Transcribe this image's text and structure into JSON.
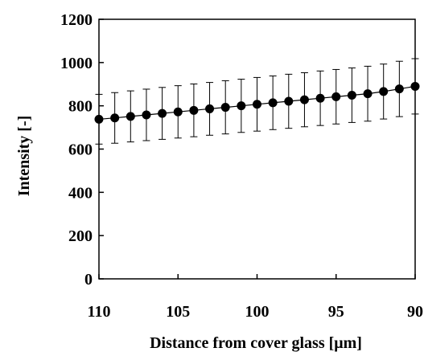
{
  "chart_data": {
    "type": "scatter",
    "xlabel": "Distance from cover glass [μm]",
    "ylabel": "Intensity [-]",
    "xlim": [
      110,
      90
    ],
    "ylim": [
      0,
      1200
    ],
    "x_ticks": [
      110,
      105,
      100,
      95,
      90
    ],
    "y_ticks": [
      0,
      200,
      400,
      600,
      800,
      1000,
      1200
    ],
    "x_reversed": true,
    "grid": false,
    "series": [
      {
        "x": [
          110,
          109,
          108,
          107,
          106,
          105,
          104,
          103,
          102,
          101,
          100,
          99,
          98,
          97,
          96,
          95,
          94,
          93,
          92,
          91,
          90
        ],
        "y": [
          738,
          744,
          751,
          758,
          765,
          772,
          779,
          786,
          793,
          800,
          807,
          814,
          821,
          828,
          835,
          842,
          849,
          856,
          866,
          878,
          890
        ],
        "error": [
          115,
          117,
          118,
          119,
          120,
          121,
          122,
          122,
          123,
          123,
          124,
          124,
          125,
          125,
          126,
          126,
          126,
          127,
          127,
          128,
          128
        ]
      }
    ]
  }
}
